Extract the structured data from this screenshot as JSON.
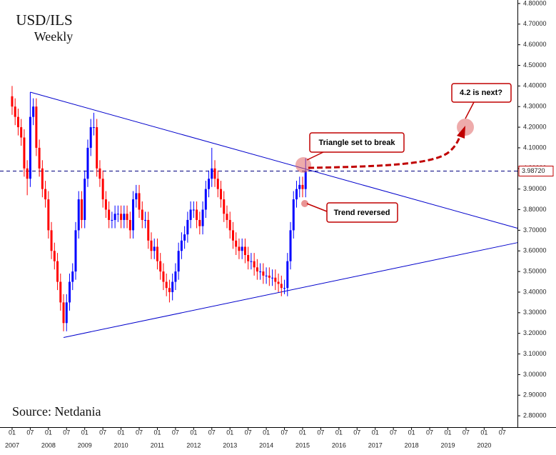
{
  "chart_data": {
    "type": "candlestick",
    "title": "USD/ILS",
    "subtitle": "Weekly",
    "source": "Source: Netdania",
    "up_color": "#0000ff",
    "down_color": "#ff0000",
    "trendline_color": "#0000cc",
    "x": [
      "2007-01",
      "2007-02",
      "2007-03",
      "2007-04",
      "2007-05",
      "2007-06",
      "2007-07",
      "2007-08",
      "2007-09",
      "2007-10",
      "2007-11",
      "2007-12",
      "2008-01",
      "2008-02",
      "2008-03",
      "2008-04",
      "2008-05",
      "2008-06",
      "2008-07",
      "2008-08",
      "2008-09",
      "2008-10",
      "2008-11",
      "2008-12",
      "2009-01",
      "2009-02",
      "2009-03",
      "2009-04",
      "2009-05",
      "2009-06",
      "2009-07",
      "2009-08",
      "2009-09",
      "2009-10",
      "2009-11",
      "2009-12",
      "2010-01",
      "2010-02",
      "2010-03",
      "2010-04",
      "2010-05",
      "2010-06",
      "2010-07",
      "2010-08",
      "2010-09",
      "2010-10",
      "2010-11",
      "2010-12",
      "2011-01",
      "2011-02",
      "2011-03",
      "2011-04",
      "2011-05",
      "2011-06",
      "2011-07",
      "2011-08",
      "2011-09",
      "2011-10",
      "2011-11",
      "2011-12",
      "2012-01",
      "2012-02",
      "2012-03",
      "2012-04",
      "2012-05",
      "2012-06",
      "2012-07",
      "2012-08",
      "2012-09",
      "2012-10",
      "2012-11",
      "2012-12",
      "2013-01",
      "2013-02",
      "2013-03",
      "2013-04",
      "2013-05",
      "2013-06",
      "2013-07",
      "2013-08",
      "2013-09",
      "2013-10",
      "2013-11",
      "2013-12",
      "2014-01",
      "2014-02",
      "2014-03",
      "2014-04",
      "2014-05",
      "2014-06",
      "2014-07",
      "2014-08",
      "2014-09",
      "2014-10",
      "2014-11",
      "2014-12",
      "2015-01",
      "2015-02"
    ],
    "open": [
      4.35,
      4.3,
      4.25,
      4.2,
      4.15,
      4.0,
      3.95,
      4.25,
      4.3,
      4.1,
      4.0,
      3.9,
      3.85,
      3.7,
      3.6,
      3.55,
      3.45,
      3.35,
      3.25,
      3.35,
      3.45,
      3.5,
      3.7,
      3.85,
      3.75,
      3.95,
      4.1,
      4.2,
      4.2,
      4.0,
      3.95,
      3.85,
      3.8,
      3.75,
      3.75,
      3.78,
      3.78,
      3.75,
      3.78,
      3.75,
      3.7,
      3.85,
      3.88,
      3.8,
      3.75,
      3.75,
      3.65,
      3.6,
      3.62,
      3.55,
      3.5,
      3.45,
      3.42,
      3.4,
      3.45,
      3.5,
      3.6,
      3.65,
      3.68,
      3.75,
      3.8,
      3.8,
      3.75,
      3.72,
      3.8,
      3.9,
      3.95,
      4.0,
      3.95,
      3.9,
      3.85,
      3.78,
      3.75,
      3.7,
      3.65,
      3.62,
      3.6,
      3.62,
      3.58,
      3.55,
      3.55,
      3.52,
      3.5,
      3.5,
      3.48,
      3.48,
      3.47,
      3.47,
      3.45,
      3.44,
      3.42,
      3.42,
      3.55,
      3.7,
      3.85,
      3.9,
      3.92,
      3.9
    ],
    "high": [
      4.4,
      4.34,
      4.29,
      4.24,
      4.19,
      4.04,
      4.37,
      4.34,
      4.34,
      4.14,
      4.04,
      3.94,
      3.89,
      3.74,
      3.64,
      3.59,
      3.49,
      3.39,
      3.39,
      3.49,
      3.54,
      3.74,
      3.89,
      3.89,
      3.99,
      4.14,
      4.24,
      4.27,
      4.24,
      4.04,
      3.99,
      3.89,
      3.84,
      3.79,
      3.82,
      3.82,
      3.82,
      3.82,
      3.82,
      3.79,
      3.89,
      3.92,
      3.92,
      3.84,
      3.79,
      3.79,
      3.69,
      3.66,
      3.66,
      3.59,
      3.54,
      3.49,
      3.46,
      3.49,
      3.54,
      3.64,
      3.69,
      3.72,
      3.79,
      3.84,
      3.84,
      3.84,
      3.79,
      3.84,
      3.94,
      3.99,
      4.1,
      4.04,
      3.99,
      3.94,
      3.89,
      3.82,
      3.79,
      3.74,
      3.69,
      3.66,
      3.66,
      3.66,
      3.62,
      3.59,
      3.59,
      3.56,
      3.54,
      3.54,
      3.52,
      3.52,
      3.51,
      3.51,
      3.49,
      3.48,
      3.46,
      3.59,
      3.74,
      3.89,
      3.94,
      3.96,
      3.96,
      4.05
    ],
    "low": [
      4.26,
      4.21,
      4.16,
      4.11,
      3.96,
      3.87,
      3.91,
      4.21,
      4.06,
      3.96,
      3.86,
      3.81,
      3.66,
      3.56,
      3.51,
      3.41,
      3.31,
      3.21,
      3.21,
      3.31,
      3.41,
      3.46,
      3.66,
      3.71,
      3.71,
      3.91,
      4.06,
      4.16,
      3.96,
      3.91,
      3.81,
      3.76,
      3.71,
      3.71,
      3.71,
      3.74,
      3.71,
      3.71,
      3.71,
      3.66,
      3.66,
      3.81,
      3.76,
      3.71,
      3.71,
      3.61,
      3.56,
      3.56,
      3.51,
      3.46,
      3.41,
      3.38,
      3.35,
      3.36,
      3.41,
      3.46,
      3.56,
      3.61,
      3.64,
      3.71,
      3.76,
      3.71,
      3.68,
      3.68,
      3.76,
      3.86,
      3.91,
      3.91,
      3.86,
      3.81,
      3.74,
      3.71,
      3.66,
      3.61,
      3.58,
      3.56,
      3.56,
      3.54,
      3.51,
      3.51,
      3.48,
      3.46,
      3.46,
      3.44,
      3.44,
      3.43,
      3.43,
      3.41,
      3.4,
      3.38,
      3.39,
      3.38,
      3.51,
      3.66,
      3.81,
      3.86,
      3.86,
      3.86
    ],
    "close": [
      4.3,
      4.25,
      4.2,
      4.15,
      4.0,
      3.95,
      4.25,
      4.3,
      4.1,
      4.0,
      3.9,
      3.85,
      3.7,
      3.6,
      3.55,
      3.45,
      3.35,
      3.25,
      3.35,
      3.45,
      3.5,
      3.7,
      3.85,
      3.75,
      3.95,
      4.1,
      4.2,
      4.2,
      4.0,
      3.95,
      3.85,
      3.8,
      3.75,
      3.75,
      3.78,
      3.78,
      3.75,
      3.78,
      3.75,
      3.7,
      3.85,
      3.88,
      3.8,
      3.75,
      3.75,
      3.65,
      3.6,
      3.62,
      3.55,
      3.5,
      3.45,
      3.42,
      3.4,
      3.45,
      3.5,
      3.6,
      3.65,
      3.68,
      3.75,
      3.8,
      3.8,
      3.75,
      3.72,
      3.8,
      3.9,
      3.95,
      4.0,
      3.95,
      3.9,
      3.85,
      3.78,
      3.75,
      3.7,
      3.65,
      3.62,
      3.6,
      3.62,
      3.58,
      3.55,
      3.55,
      3.52,
      3.5,
      3.5,
      3.48,
      3.48,
      3.47,
      3.47,
      3.45,
      3.44,
      3.42,
      3.42,
      3.55,
      3.7,
      3.85,
      3.9,
      3.92,
      3.9,
      3.9872
    ],
    "last_price": {
      "value": 3.9872,
      "label": "3.98720"
    },
    "trendlines": [
      {
        "x": [
          "2007-07",
          "2020-12"
        ],
        "y": [
          4.37,
          3.71
        ]
      },
      {
        "x": [
          "2008-06",
          "2020-12"
        ],
        "y": [
          3.18,
          3.64
        ]
      }
    ],
    "annotations": [
      "Triangle set to break",
      "Trend reversed",
      "4.2 is next?"
    ],
    "xlim": [
      "2006-09",
      "2020-12"
    ],
    "ylim": [
      2.745,
      4.817
    ],
    "yticks": [
      {
        "value": 2.8,
        "label": "2.80000"
      },
      {
        "value": 2.9,
        "label": "2.90000"
      },
      {
        "value": 3.0,
        "label": "3.00000"
      },
      {
        "value": 3.1,
        "label": "3.10000"
      },
      {
        "value": 3.2,
        "label": "3.20000"
      },
      {
        "value": 3.3,
        "label": "3.30000"
      },
      {
        "value": 3.4,
        "label": "3.40000"
      },
      {
        "value": 3.5,
        "label": "3.50000"
      },
      {
        "value": 3.6,
        "label": "3.60000"
      },
      {
        "value": 3.7,
        "label": "3.70000"
      },
      {
        "value": 3.8,
        "label": "3.80000"
      },
      {
        "value": 3.9,
        "label": "3.90000"
      },
      {
        "value": 4.0,
        "label": "4.00000"
      },
      {
        "value": 4.1,
        "label": "4.10000"
      },
      {
        "value": 4.2,
        "label": "4.20000"
      },
      {
        "value": 4.3,
        "label": "4.30000"
      },
      {
        "value": 4.4,
        "label": "4.40000"
      },
      {
        "value": 4.5,
        "label": "4.50000"
      },
      {
        "value": 4.6,
        "label": "4.60000"
      },
      {
        "value": 4.7,
        "label": "4.70000"
      },
      {
        "value": 4.8,
        "label": "4.80000"
      }
    ],
    "xticks": [
      {
        "value": "2007-01",
        "label": "01",
        "year": "2007"
      },
      {
        "value": "2007-07",
        "label": "07"
      },
      {
        "value": "2008-01",
        "label": "01",
        "year": "2008"
      },
      {
        "value": "2008-07",
        "label": "07"
      },
      {
        "value": "2009-01",
        "label": "01",
        "year": "2009"
      },
      {
        "value": "2009-07",
        "label": "07"
      },
      {
        "value": "2010-01",
        "label": "01",
        "year": "2010"
      },
      {
        "value": "2010-07",
        "label": "07"
      },
      {
        "value": "2011-01",
        "label": "01",
        "year": "2011"
      },
      {
        "value": "2011-07",
        "label": "07"
      },
      {
        "value": "2012-01",
        "label": "01",
        "year": "2012"
      },
      {
        "value": "2012-07",
        "label": "07"
      },
      {
        "value": "2013-01",
        "label": "01",
        "year": "2013"
      },
      {
        "value": "2013-07",
        "label": "07"
      },
      {
        "value": "2014-01",
        "label": "01",
        "year": "2014"
      },
      {
        "value": "2014-07",
        "label": "07"
      },
      {
        "value": "2015-01",
        "label": "01",
        "year": "2015"
      },
      {
        "value": "2015-07",
        "label": "07"
      },
      {
        "value": "2016-01",
        "label": "01",
        "year": "2016"
      },
      {
        "value": "2016-07",
        "label": "07"
      },
      {
        "value": "2017-01",
        "label": "01",
        "year": "2017"
      },
      {
        "value": "2017-07",
        "label": "07"
      },
      {
        "value": "2018-01",
        "label": "01",
        "year": "2018"
      },
      {
        "value": "2018-07",
        "label": "07"
      },
      {
        "value": "2019-01",
        "label": "01",
        "year": "2019"
      },
      {
        "value": "2019-07",
        "label": "07"
      },
      {
        "value": "2020-01",
        "label": "01",
        "year": "2020"
      },
      {
        "value": "2020-07",
        "label": "07"
      }
    ]
  }
}
